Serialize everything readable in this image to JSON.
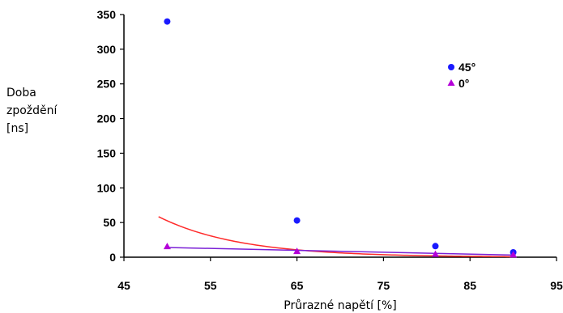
{
  "chart_data": {
    "type": "scatter",
    "xlabel": "Průrazné napětí [%]",
    "ylabel_lines": [
      "Doba",
      "zpoždění",
      "[ns]"
    ],
    "xlim": [
      45,
      95
    ],
    "ylim": [
      0,
      350
    ],
    "x_ticks": [
      "45",
      "55",
      "65",
      "75",
      "85",
      "95"
    ],
    "y_ticks": [
      "0",
      "50",
      "100",
      "150",
      "200",
      "250",
      "300",
      "350"
    ],
    "grid": false,
    "legend_position": "right",
    "series": [
      {
        "name": "45°",
        "marker": "circle",
        "color": "#1a1aff",
        "points": [
          {
            "x": 50,
            "y": 340
          },
          {
            "x": 65,
            "y": 53
          },
          {
            "x": 81,
            "y": 16
          },
          {
            "x": 90,
            "y": 7
          }
        ]
      },
      {
        "name": "0°",
        "marker": "triangle",
        "color": "#b400d8",
        "points": [
          {
            "x": 50,
            "y": 15
          },
          {
            "x": 65,
            "y": 8
          },
          {
            "x": 81,
            "y": 4
          },
          {
            "x": 90,
            "y": 3
          }
        ]
      }
    ],
    "trendlines": [
      {
        "series": "45°",
        "kind": "exponential",
        "color": "#ff2a2a",
        "x_range": [
          49,
          90
        ],
        "a": 10900,
        "b": 0.1067
      },
      {
        "series": "0°",
        "kind": "linear",
        "color": "#7a1fd6",
        "points": [
          {
            "x": 50,
            "y": 14
          },
          {
            "x": 90,
            "y": 3
          }
        ]
      }
    ]
  }
}
